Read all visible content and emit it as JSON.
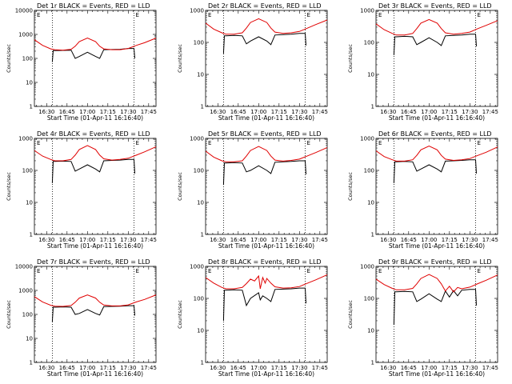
{
  "chart_data": [
    {
      "type": "line",
      "title": "Det 1r BLACK = Events, RED = LLD",
      "xlabel": "Start Time (01-Apr-11 16:16:40)",
      "ylabel": "Counts/sec",
      "yscale": "log",
      "ylim": [
        1,
        10000
      ],
      "xlim": [
        16.35,
        17.84
      ],
      "x_tick_labels": [
        "16:30",
        "16:45",
        "17:00",
        "17:15",
        "17:30",
        "17:45"
      ],
      "y_tick_labels": [
        "1",
        "10",
        "100",
        "1000",
        "10000"
      ],
      "vlines": [
        16.57,
        17.57
      ],
      "markers": [
        "E",
        "E"
      ],
      "series": [
        {
          "color": "#000000",
          "x": [
            16.57,
            16.58,
            16.6,
            16.7,
            16.8,
            16.85,
            16.9,
            17.0,
            17.1,
            17.15,
            17.2,
            17.3,
            17.4,
            17.5,
            17.57,
            17.58
          ],
          "y": [
            70,
            210,
            210,
            215,
            220,
            100,
            120,
            180,
            120,
            100,
            230,
            235,
            240,
            260,
            260,
            100
          ]
        },
        {
          "color": "#e00000",
          "x": [
            16.35,
            16.45,
            16.55,
            16.6,
            16.7,
            16.8,
            16.85,
            16.9,
            17.0,
            17.1,
            17.15,
            17.2,
            17.3,
            17.4,
            17.5,
            17.6,
            17.7,
            17.84
          ],
          "y": [
            600,
            350,
            250,
            230,
            220,
            240,
            320,
            500,
            700,
            500,
            320,
            250,
            230,
            230,
            260,
            350,
            450,
            700
          ]
        }
      ]
    },
    {
      "type": "line",
      "title": "Det 2r BLACK = Events, RED = LLD",
      "xlabel": "Start Time (01-Apr-11 16:16:40)",
      "ylabel": "Counts/sec",
      "yscale": "log",
      "ylim": [
        1,
        1000
      ],
      "xlim": [
        16.35,
        17.84
      ],
      "x_tick_labels": [
        "16:30",
        "16:45",
        "17:00",
        "17:15",
        "17:30",
        "17:45"
      ],
      "y_tick_labels": [
        "1",
        "10",
        "100",
        "1000"
      ],
      "vlines": [
        16.57,
        17.57
      ],
      "markers": [
        "E",
        "E"
      ],
      "series": [
        {
          "color": "#000000",
          "x": [
            16.57,
            16.58,
            16.6,
            16.7,
            16.8,
            16.85,
            16.9,
            17.0,
            17.1,
            17.15,
            17.2,
            17.3,
            17.4,
            17.5,
            17.57,
            17.58
          ],
          "y": [
            45,
            160,
            160,
            165,
            160,
            90,
            110,
            150,
            110,
            85,
            170,
            175,
            180,
            190,
            190,
            80
          ]
        },
        {
          "color": "#e00000",
          "x": [
            16.35,
            16.45,
            16.55,
            16.6,
            16.7,
            16.8,
            16.85,
            16.9,
            17.0,
            17.1,
            17.15,
            17.2,
            17.3,
            17.4,
            17.5,
            17.6,
            17.7,
            17.84
          ],
          "y": [
            400,
            260,
            200,
            180,
            180,
            200,
            280,
            420,
            550,
            420,
            280,
            210,
            190,
            200,
            220,
            280,
            360,
            500
          ]
        }
      ]
    },
    {
      "type": "line",
      "title": "Det 3r BLACK = Events, RED = LLD",
      "xlabel": "Start Time (01-Apr-11 16:16:40)",
      "ylabel": "Counts/sec",
      "yscale": "log",
      "ylim": [
        1,
        1000
      ],
      "xlim": [
        16.35,
        17.84
      ],
      "x_tick_labels": [
        "16:30",
        "16:45",
        "17:00",
        "17:15",
        "17:30",
        "17:45"
      ],
      "y_tick_labels": [
        "1",
        "10",
        "100",
        "1000"
      ],
      "vlines": [
        16.57,
        17.57
      ],
      "markers": [
        "E",
        "E"
      ],
      "series": [
        {
          "color": "#000000",
          "x": [
            16.57,
            16.58,
            16.6,
            16.7,
            16.8,
            16.85,
            16.9,
            17.0,
            17.1,
            17.15,
            17.2,
            17.3,
            17.4,
            17.5,
            17.57,
            17.58
          ],
          "y": [
            40,
            150,
            150,
            155,
            150,
            85,
            100,
            140,
            100,
            80,
            160,
            165,
            170,
            180,
            180,
            75
          ]
        },
        {
          "color": "#e00000",
          "x": [
            16.35,
            16.45,
            16.55,
            16.6,
            16.7,
            16.8,
            16.85,
            16.9,
            17.0,
            17.1,
            17.15,
            17.2,
            17.3,
            17.4,
            17.5,
            17.6,
            17.7,
            17.84
          ],
          "y": [
            380,
            250,
            190,
            170,
            170,
            190,
            270,
            400,
            520,
            400,
            270,
            200,
            180,
            190,
            210,
            270,
            340,
            480
          ]
        }
      ]
    },
    {
      "type": "line",
      "title": "Det 4r BLACK = Events, RED = LLD",
      "xlabel": "Start Time (01-Apr-11 16:16:40)",
      "ylabel": "Counts/sec",
      "yscale": "log",
      "ylim": [
        1,
        1000
      ],
      "xlim": [
        16.35,
        17.84
      ],
      "x_tick_labels": [
        "16:30",
        "16:45",
        "17:00",
        "17:15",
        "17:30",
        "17:45"
      ],
      "y_tick_labels": [
        "1",
        "10",
        "100",
        "1000"
      ],
      "vlines": [
        16.57,
        17.57
      ],
      "markers": [
        "E",
        "E"
      ],
      "series": [
        {
          "color": "#000000",
          "x": [
            16.57,
            16.58,
            16.6,
            16.7,
            16.8,
            16.85,
            16.9,
            17.0,
            17.1,
            17.15,
            17.2,
            17.3,
            17.4,
            17.5,
            17.57,
            17.58
          ],
          "y": [
            40,
            190,
            190,
            195,
            190,
            95,
            110,
            150,
            110,
            90,
            200,
            205,
            210,
            220,
            220,
            80
          ]
        },
        {
          "color": "#e00000",
          "x": [
            16.35,
            16.45,
            16.55,
            16.6,
            16.7,
            16.8,
            16.85,
            16.9,
            17.0,
            17.1,
            17.15,
            17.2,
            17.3,
            17.4,
            17.5,
            17.6,
            17.7,
            17.84
          ],
          "y": [
            420,
            280,
            220,
            200,
            200,
            220,
            300,
            450,
            600,
            450,
            300,
            230,
            210,
            220,
            240,
            300,
            380,
            550
          ]
        }
      ]
    },
    {
      "type": "line",
      "title": "Det 5r BLACK = Events, RED = LLD",
      "xlabel": "Start Time (01-Apr-11 16:16:40)",
      "ylabel": "Counts/sec",
      "yscale": "log",
      "ylim": [
        1,
        1000
      ],
      "xlim": [
        16.35,
        17.84
      ],
      "x_tick_labels": [
        "16:30",
        "16:45",
        "17:00",
        "17:15",
        "17:30",
        "17:45"
      ],
      "y_tick_labels": [
        "1",
        "10",
        "100",
        "1000"
      ],
      "vlines": [
        16.57,
        17.57
      ],
      "markers": [
        "E",
        "E"
      ],
      "series": [
        {
          "color": "#000000",
          "x": [
            16.57,
            16.58,
            16.6,
            16.7,
            16.8,
            16.85,
            16.9,
            17.0,
            17.1,
            17.15,
            17.2,
            17.3,
            17.4,
            17.5,
            17.57,
            17.58
          ],
          "y": [
            35,
            170,
            170,
            175,
            170,
            90,
            100,
            140,
            100,
            80,
            180,
            185,
            190,
            200,
            200,
            75
          ]
        },
        {
          "color": "#e00000",
          "x": [
            16.35,
            16.45,
            16.55,
            16.6,
            16.7,
            16.8,
            16.85,
            16.9,
            17.0,
            17.1,
            17.15,
            17.2,
            17.3,
            17.4,
            17.5,
            17.6,
            17.7,
            17.84
          ],
          "y": [
            400,
            260,
            200,
            185,
            185,
            200,
            280,
            420,
            560,
            420,
            280,
            210,
            195,
            205,
            225,
            285,
            360,
            520
          ]
        }
      ]
    },
    {
      "type": "line",
      "title": "Det 6r BLACK = Events, RED = LLD",
      "xlabel": "Start Time (01-Apr-11 16:16:40)",
      "ylabel": "Counts/sec",
      "yscale": "log",
      "ylim": [
        1,
        1000
      ],
      "xlim": [
        16.35,
        17.84
      ],
      "x_tick_labels": [
        "16:30",
        "16:45",
        "17:00",
        "17:15",
        "17:30",
        "17:45"
      ],
      "y_tick_labels": [
        "1",
        "10",
        "100",
        "1000"
      ],
      "vlines": [
        16.57,
        17.57
      ],
      "markers": [
        "E",
        "E"
      ],
      "series": [
        {
          "color": "#000000",
          "x": [
            16.57,
            16.58,
            16.6,
            16.7,
            16.8,
            16.85,
            16.9,
            17.0,
            17.1,
            17.15,
            17.2,
            17.3,
            17.4,
            17.5,
            17.57,
            17.58
          ],
          "y": [
            40,
            185,
            185,
            190,
            185,
            95,
            110,
            150,
            110,
            90,
            195,
            200,
            205,
            215,
            215,
            80
          ]
        },
        {
          "color": "#e00000",
          "x": [
            16.35,
            16.45,
            16.55,
            16.6,
            16.7,
            16.8,
            16.85,
            16.9,
            17.0,
            17.1,
            17.15,
            17.2,
            17.3,
            17.4,
            17.5,
            17.6,
            17.7,
            17.84
          ],
          "y": [
            410,
            270,
            215,
            195,
            195,
            215,
            295,
            440,
            580,
            440,
            295,
            225,
            205,
            215,
            235,
            295,
            370,
            540
          ]
        }
      ]
    },
    {
      "type": "line",
      "title": "Det 7r BLACK = Events, RED = LLD",
      "xlabel": "Start Time (01-Apr-11 16:16:40)",
      "ylabel": "Counts/sec",
      "yscale": "log",
      "ylim": [
        1,
        10000
      ],
      "xlim": [
        16.35,
        17.84
      ],
      "x_tick_labels": [
        "16:30",
        "16:45",
        "17:00",
        "17:15",
        "17:30",
        "17:45"
      ],
      "y_tick_labels": [
        "1",
        "10",
        "100",
        "1000",
        "10000"
      ],
      "vlines": [
        16.57,
        17.57
      ],
      "markers": [
        "E",
        "E"
      ],
      "series": [
        {
          "color": "#000000",
          "x": [
            16.57,
            16.58,
            16.6,
            16.7,
            16.8,
            16.85,
            16.9,
            17.0,
            17.1,
            17.15,
            17.2,
            17.3,
            17.4,
            17.5,
            17.57,
            17.58
          ],
          "y": [
            50,
            200,
            200,
            205,
            200,
            100,
            110,
            160,
            110,
            95,
            210,
            215,
            220,
            230,
            230,
            90
          ]
        },
        {
          "color": "#e00000",
          "x": [
            16.35,
            16.45,
            16.55,
            16.6,
            16.7,
            16.8,
            16.85,
            16.9,
            17.0,
            17.1,
            17.15,
            17.2,
            17.3,
            17.4,
            17.5,
            17.6,
            17.7,
            17.84
          ],
          "y": [
            550,
            330,
            240,
            220,
            215,
            235,
            320,
            480,
            650,
            480,
            320,
            245,
            225,
            225,
            250,
            330,
            420,
            650
          ]
        }
      ]
    },
    {
      "type": "line",
      "title": "Det 8r BLACK = Events, RED = LLD",
      "xlabel": "Start Time (01-Apr-11 16:16:40)",
      "ylabel": "Counts/sec",
      "yscale": "log",
      "ylim": [
        1,
        1000
      ],
      "xlim": [
        16.35,
        17.84
      ],
      "x_tick_labels": [
        "16:30",
        "16:45",
        "17:00",
        "17:15",
        "17:30",
        "17:45"
      ],
      "y_tick_labels": [
        "1",
        "10",
        "100",
        "1000"
      ],
      "vlines": [
        16.57,
        17.57
      ],
      "markers": [
        "E",
        "E"
      ],
      "series": [
        {
          "color": "#000000",
          "x": [
            16.57,
            16.58,
            16.6,
            16.7,
            16.8,
            16.85,
            16.9,
            17.0,
            17.02,
            17.05,
            17.1,
            17.15,
            17.2,
            17.3,
            17.4,
            17.5,
            17.57,
            17.58
          ],
          "y": [
            20,
            180,
            180,
            185,
            180,
            60,
            100,
            150,
            90,
            120,
            100,
            80,
            190,
            195,
            200,
            210,
            210,
            70
          ]
        },
        {
          "color": "#e00000",
          "x": [
            16.35,
            16.45,
            16.55,
            16.6,
            16.7,
            16.8,
            16.85,
            16.9,
            16.95,
            17.0,
            17.02,
            17.05,
            17.08,
            17.1,
            17.15,
            17.2,
            17.3,
            17.4,
            17.5,
            17.6,
            17.7,
            17.84
          ],
          "y": [
            450,
            300,
            220,
            200,
            200,
            220,
            290,
            400,
            350,
            500,
            200,
            450,
            300,
            420,
            300,
            230,
            210,
            215,
            235,
            300,
            380,
            550
          ]
        }
      ]
    },
    {
      "type": "line",
      "title": "Det 9r BLACK = Events, RED = LLD",
      "xlabel": "Start Time (01-Apr-11 16:16:40)",
      "ylabel": "Counts/sec",
      "yscale": "log",
      "ylim": [
        1,
        1000
      ],
      "xlim": [
        16.35,
        17.84
      ],
      "x_tick_labels": [
        "16:30",
        "16:45",
        "17:00",
        "17:15",
        "17:30",
        "17:45"
      ],
      "y_tick_labels": [
        "1",
        "10",
        "100",
        "1000"
      ],
      "vlines": [
        16.57,
        17.57
      ],
      "markers": [
        "E",
        "E"
      ],
      "series": [
        {
          "color": "#000000",
          "x": [
            16.57,
            16.58,
            16.6,
            16.7,
            16.8,
            16.85,
            16.9,
            17.0,
            17.1,
            17.15,
            17.2,
            17.25,
            17.3,
            17.35,
            17.4,
            17.5,
            17.57,
            17.58
          ],
          "y": [
            15,
            160,
            160,
            165,
            160,
            80,
            95,
            140,
            95,
            80,
            170,
            110,
            175,
            120,
            180,
            190,
            190,
            60
          ]
        },
        {
          "color": "#e00000",
          "x": [
            16.35,
            16.45,
            16.55,
            16.6,
            16.7,
            16.8,
            16.85,
            16.9,
            17.0,
            17.1,
            17.15,
            17.2,
            17.25,
            17.3,
            17.35,
            17.4,
            17.5,
            17.6,
            17.7,
            17.84
          ],
          "y": [
            400,
            270,
            205,
            185,
            185,
            205,
            285,
            420,
            560,
            420,
            285,
            170,
            240,
            160,
            220,
            200,
            225,
            290,
            370,
            540
          ]
        }
      ]
    }
  ]
}
